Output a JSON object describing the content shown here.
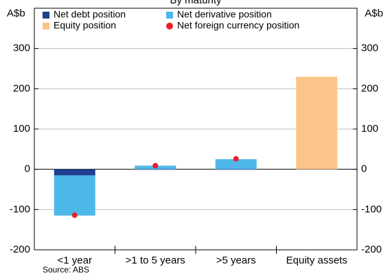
{
  "chart_data": {
    "type": "bar",
    "title": "By maturity",
    "y_label": "A$b",
    "y2_label": "A$b",
    "categories": [
      "<1 year",
      ">1 to 5 years",
      ">5 years",
      "Equity assets"
    ],
    "series": [
      {
        "name": "Net debt position",
        "color": "#1f3f8f",
        "values": [
          -15,
          -1,
          -1,
          null
        ]
      },
      {
        "name": "Net derivative position",
        "color": "#4db8e8",
        "values": [
          -100,
          9,
          25,
          null
        ]
      },
      {
        "name": "Equity position",
        "color": "#fbc58a",
        "values": [
          null,
          null,
          null,
          230
        ]
      },
      {
        "name": "Net foreign currency position",
        "color": "#e8202a",
        "type": "dot",
        "values": [
          -114,
          9,
          26,
          null
        ]
      }
    ],
    "ylim": [
      -200,
      400
    ],
    "yticks": [
      -200,
      -100,
      0,
      100,
      200,
      300
    ],
    "grid": true,
    "legend": "top",
    "source": "Source: ABS"
  }
}
